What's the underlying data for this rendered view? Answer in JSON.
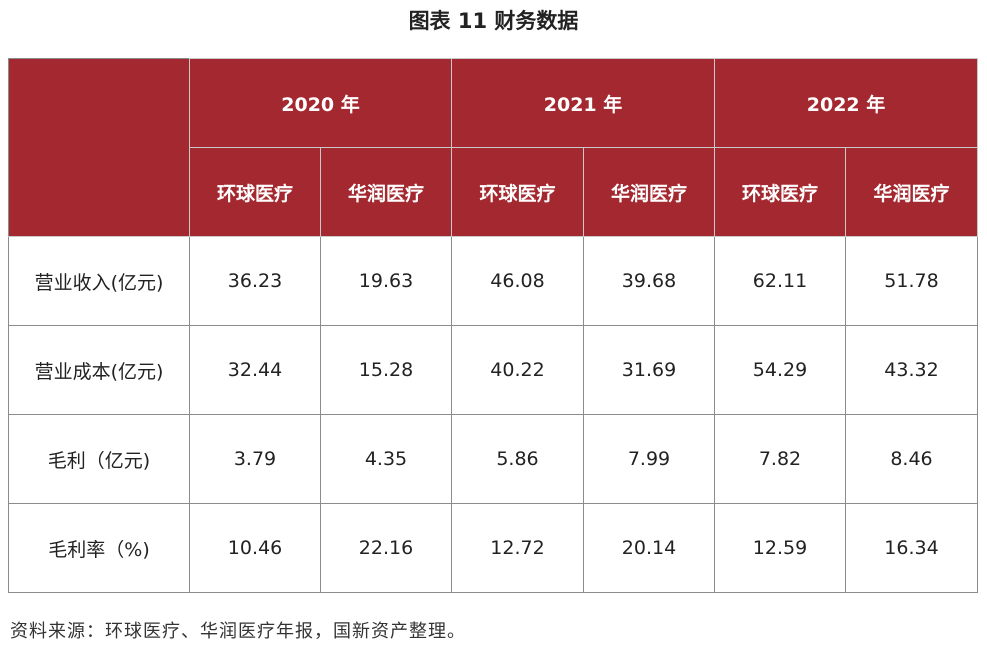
{
  "title": "图表 11 财务数据",
  "table": {
    "years": [
      "2020 年",
      "2021 年",
      "2022 年"
    ],
    "companies": [
      "环球医疗",
      "华润医疗"
    ],
    "rows": [
      {
        "label": "营业收入(亿元)",
        "values": [
          "36.23",
          "19.63",
          "46.08",
          "39.68",
          "62.11",
          "51.78"
        ]
      },
      {
        "label": "营业成本(亿元)",
        "values": [
          "32.44",
          "15.28",
          "40.22",
          "31.69",
          "54.29",
          "43.32"
        ]
      },
      {
        "label": "毛利（亿元)",
        "values": [
          "3.79",
          "4.35",
          "5.86",
          "7.99",
          "7.82",
          "8.46"
        ]
      },
      {
        "label": "毛利率（%)",
        "values": [
          "10.46",
          "22.16",
          "12.72",
          "20.14",
          "12.59",
          "16.34"
        ]
      }
    ]
  },
  "source": "资料来源：环球医疗、华润医疗年报，国新资产整理。",
  "colors": {
    "header_bg": "#a3282f",
    "header_text": "#ffffff",
    "border": "#8c8c8c"
  }
}
